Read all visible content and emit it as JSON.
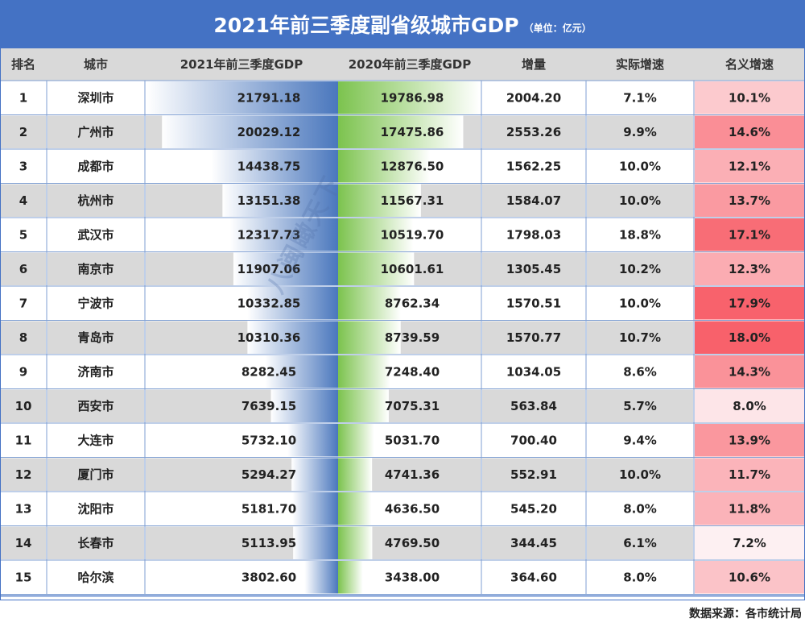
{
  "title": "2021年前三季度副省级城市GDP",
  "unit": "（单位：亿元）",
  "source": "数据来源：各市统计局",
  "watermark": "八闽瞰天下",
  "colors": {
    "title_bg": "#4472C4",
    "header_bg": "#D9D9D9",
    "bar_2021": "#4A77BD",
    "bar_2020": "#7CC34E",
    "nominal_low": "#FDF0F2",
    "nominal_high": "#F8616B"
  },
  "chart_data": {
    "type": "table",
    "columns": [
      "排名",
      "城市",
      "2021年前三季度GDP",
      "2020年前三季度GDP",
      "增量",
      "实际增速",
      "名义增速"
    ],
    "rows": [
      {
        "rank": "1",
        "city": "深圳市",
        "gdp2021": 21791.18,
        "gdp2020": 19786.98,
        "increase": "2004.20",
        "real_growth": "7.1%",
        "nominal_growth": "10.1%"
      },
      {
        "rank": "2",
        "city": "广州市",
        "gdp2021": 20029.12,
        "gdp2020": 17475.86,
        "increase": "2553.26",
        "real_growth": "9.9%",
        "nominal_growth": "14.6%"
      },
      {
        "rank": "3",
        "city": "成都市",
        "gdp2021": 14438.75,
        "gdp2020": 12876.5,
        "increase": "1562.25",
        "real_growth": "10.0%",
        "nominal_growth": "12.1%"
      },
      {
        "rank": "4",
        "city": "杭州市",
        "gdp2021": 13151.38,
        "gdp2020": 11567.31,
        "increase": "1584.07",
        "real_growth": "10.0%",
        "nominal_growth": "13.7%"
      },
      {
        "rank": "5",
        "city": "武汉市",
        "gdp2021": 12317.73,
        "gdp2020": 10519.7,
        "increase": "1798.03",
        "real_growth": "18.8%",
        "nominal_growth": "17.1%"
      },
      {
        "rank": "6",
        "city": "南京市",
        "gdp2021": 11907.06,
        "gdp2020": 10601.61,
        "increase": "1305.45",
        "real_growth": "10.2%",
        "nominal_growth": "12.3%"
      },
      {
        "rank": "7",
        "city": "宁波市",
        "gdp2021": 10332.85,
        "gdp2020": 8762.34,
        "increase": "1570.51",
        "real_growth": "10.0%",
        "nominal_growth": "17.9%"
      },
      {
        "rank": "8",
        "city": "青岛市",
        "gdp2021": 10310.36,
        "gdp2020": 8739.59,
        "increase": "1570.77",
        "real_growth": "10.7%",
        "nominal_growth": "18.0%"
      },
      {
        "rank": "9",
        "city": "济南市",
        "gdp2021": 8282.45,
        "gdp2020": 7248.4,
        "increase": "1034.05",
        "real_growth": "8.6%",
        "nominal_growth": "14.3%"
      },
      {
        "rank": "10",
        "city": "西安市",
        "gdp2021": 7639.15,
        "gdp2020": 7075.31,
        "increase": "563.84",
        "real_growth": "5.7%",
        "nominal_growth": "8.0%"
      },
      {
        "rank": "11",
        "city": "大连市",
        "gdp2021": 5732.1,
        "gdp2020": 5031.7,
        "increase": "700.40",
        "real_growth": "9.4%",
        "nominal_growth": "13.9%"
      },
      {
        "rank": "12",
        "city": "厦门市",
        "gdp2021": 5294.27,
        "gdp2020": 4741.36,
        "increase": "552.91",
        "real_growth": "10.0%",
        "nominal_growth": "11.7%"
      },
      {
        "rank": "13",
        "city": "沈阳市",
        "gdp2021": 5181.7,
        "gdp2020": 4636.5,
        "increase": "545.20",
        "real_growth": "8.0%",
        "nominal_growth": "11.8%"
      },
      {
        "rank": "14",
        "city": "长春市",
        "gdp2021": 5113.95,
        "gdp2020": 4769.5,
        "increase": "344.45",
        "real_growth": "6.1%",
        "nominal_growth": "7.2%"
      },
      {
        "rank": "15",
        "city": "哈尔滨",
        "gdp2021": 3802.6,
        "gdp2020": 3438.0,
        "increase": "364.60",
        "real_growth": "8.0%",
        "nominal_growth": "10.6%"
      }
    ]
  }
}
